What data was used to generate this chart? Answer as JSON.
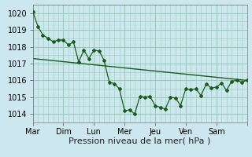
{
  "xlabel": "Pression niveau de la mer( hPa )",
  "bg_color": "#cce8ee",
  "grid_color": "#99ccbb",
  "line_color": "#1a5c1a",
  "xlim": [
    0,
    7
  ],
  "ylim": [
    1013.5,
    1020.5
  ],
  "yticks": [
    1014,
    1015,
    1016,
    1017,
    1018,
    1019,
    1020
  ],
  "xtick_positions": [
    0,
    1,
    2,
    3,
    4,
    5,
    6,
    7
  ],
  "xtick_labels": [
    "Mar",
    "Dim",
    "Lun",
    "Mer",
    "Jeu",
    "Ven",
    "Sam",
    ""
  ],
  "series1_x": [
    0.0,
    0.17,
    0.33,
    0.5,
    0.67,
    0.83,
    1.0,
    1.17,
    1.33,
    1.5,
    1.67,
    1.83,
    2.0,
    2.17,
    2.33,
    2.5,
    2.67,
    2.83,
    3.0,
    3.17,
    3.33,
    3.5,
    3.67,
    3.83,
    4.0,
    4.17,
    4.33,
    4.5,
    4.67,
    4.83,
    5.0,
    5.17,
    5.33,
    5.5,
    5.67,
    5.83,
    6.0,
    6.17,
    6.33,
    6.5,
    6.67,
    6.83,
    7.0
  ],
  "series1_y": [
    1020.1,
    1019.2,
    1018.7,
    1018.5,
    1018.3,
    1018.4,
    1018.4,
    1018.1,
    1018.3,
    1017.1,
    1017.8,
    1017.3,
    1017.8,
    1017.75,
    1017.2,
    1015.9,
    1015.8,
    1015.5,
    1014.2,
    1014.25,
    1014.0,
    1015.05,
    1015.0,
    1015.05,
    1014.5,
    1014.4,
    1014.3,
    1015.0,
    1014.95,
    1014.5,
    1015.5,
    1015.45,
    1015.5,
    1015.1,
    1015.8,
    1015.55,
    1015.6,
    1015.85,
    1015.4,
    1015.95,
    1016.0,
    1015.9,
    1016.0
  ],
  "trend_x": [
    0.0,
    7.0
  ],
  "trend_y": [
    1017.3,
    1016.0
  ],
  "xlabel_fontsize": 8,
  "tick_fontsize": 7
}
